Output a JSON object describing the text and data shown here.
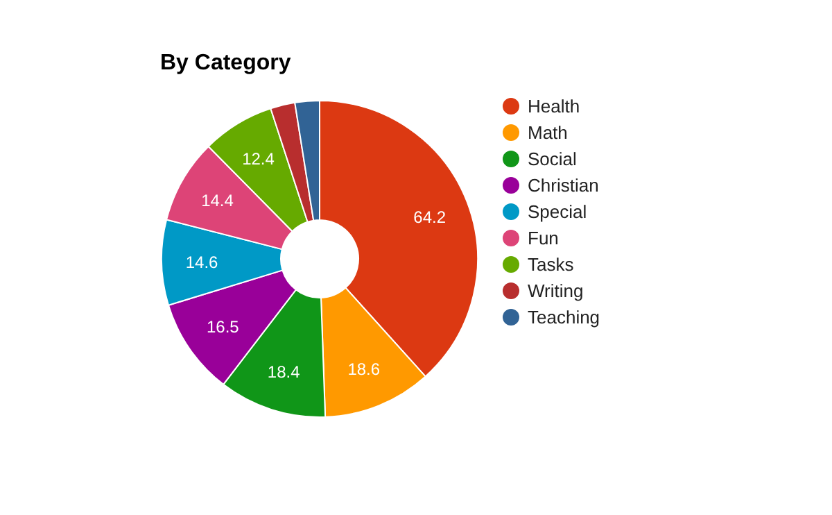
{
  "chart_data": {
    "type": "donut",
    "title": "By Category",
    "categories": [
      "Health",
      "Math",
      "Social",
      "Christian",
      "Special",
      "Fun",
      "Tasks",
      "Writing",
      "Teaching"
    ],
    "values": [
      64.2,
      18.6,
      18.4,
      16.5,
      14.6,
      14.4,
      12.4,
      4.2,
      4.2
    ],
    "colors": [
      "#dc3912",
      "#ff9900",
      "#109618",
      "#990099",
      "#0099c6",
      "#dd4477",
      "#66aa00",
      "#b82e2e",
      "#316395"
    ],
    "value_labels": [
      "64.2",
      "18.6",
      "18.4",
      "16.5",
      "14.6",
      "14.4",
      "12.4",
      null,
      null
    ],
    "legend": "right"
  }
}
